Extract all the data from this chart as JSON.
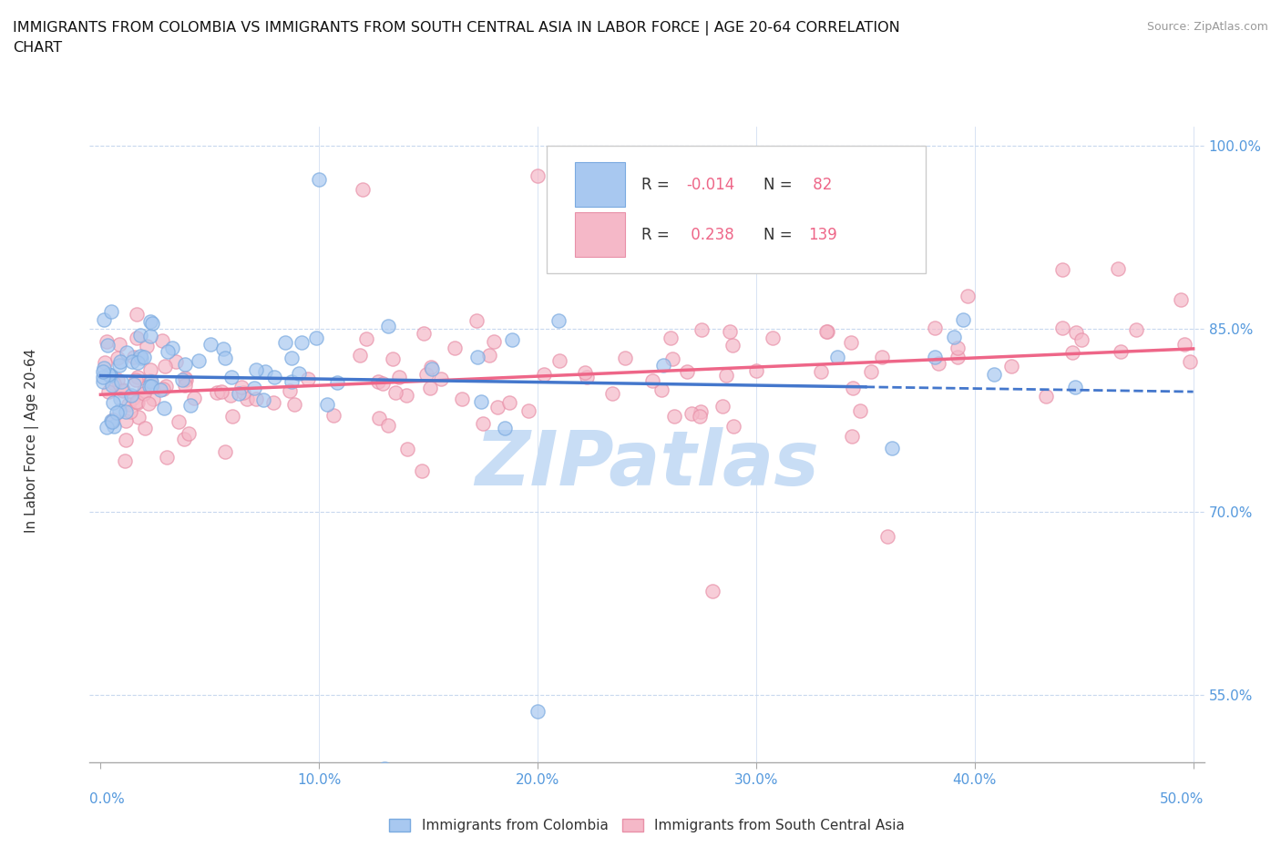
{
  "title_line1": "IMMIGRANTS FROM COLOMBIA VS IMMIGRANTS FROM SOUTH CENTRAL ASIA IN LABOR FORCE | AGE 20-64 CORRELATION",
  "title_line2": "CHART",
  "source": "Source: ZipAtlas.com",
  "x_min": 0.0,
  "x_max": 0.5,
  "y_min": 0.5,
  "y_max": 1.0,
  "colombia_color": "#a8c8f0",
  "colombia_edge": "#7aaae0",
  "asia_color": "#f5b8c8",
  "asia_edge": "#e890a8",
  "trend_colombia_color": "#4477cc",
  "trend_asia_color": "#ee6688",
  "grid_color": "#c8d8ee",
  "watermark_color": "#c8ddf5",
  "ytick_color": "#5599dd",
  "xtick_bottom_color": "#5599dd",
  "legend_border_color": "#cccccc",
  "legend_R_color": "#ee6688",
  "legend_N_color": "#333333",
  "spine_color": "#aaaaaa",
  "ylabel_color": "#333333"
}
